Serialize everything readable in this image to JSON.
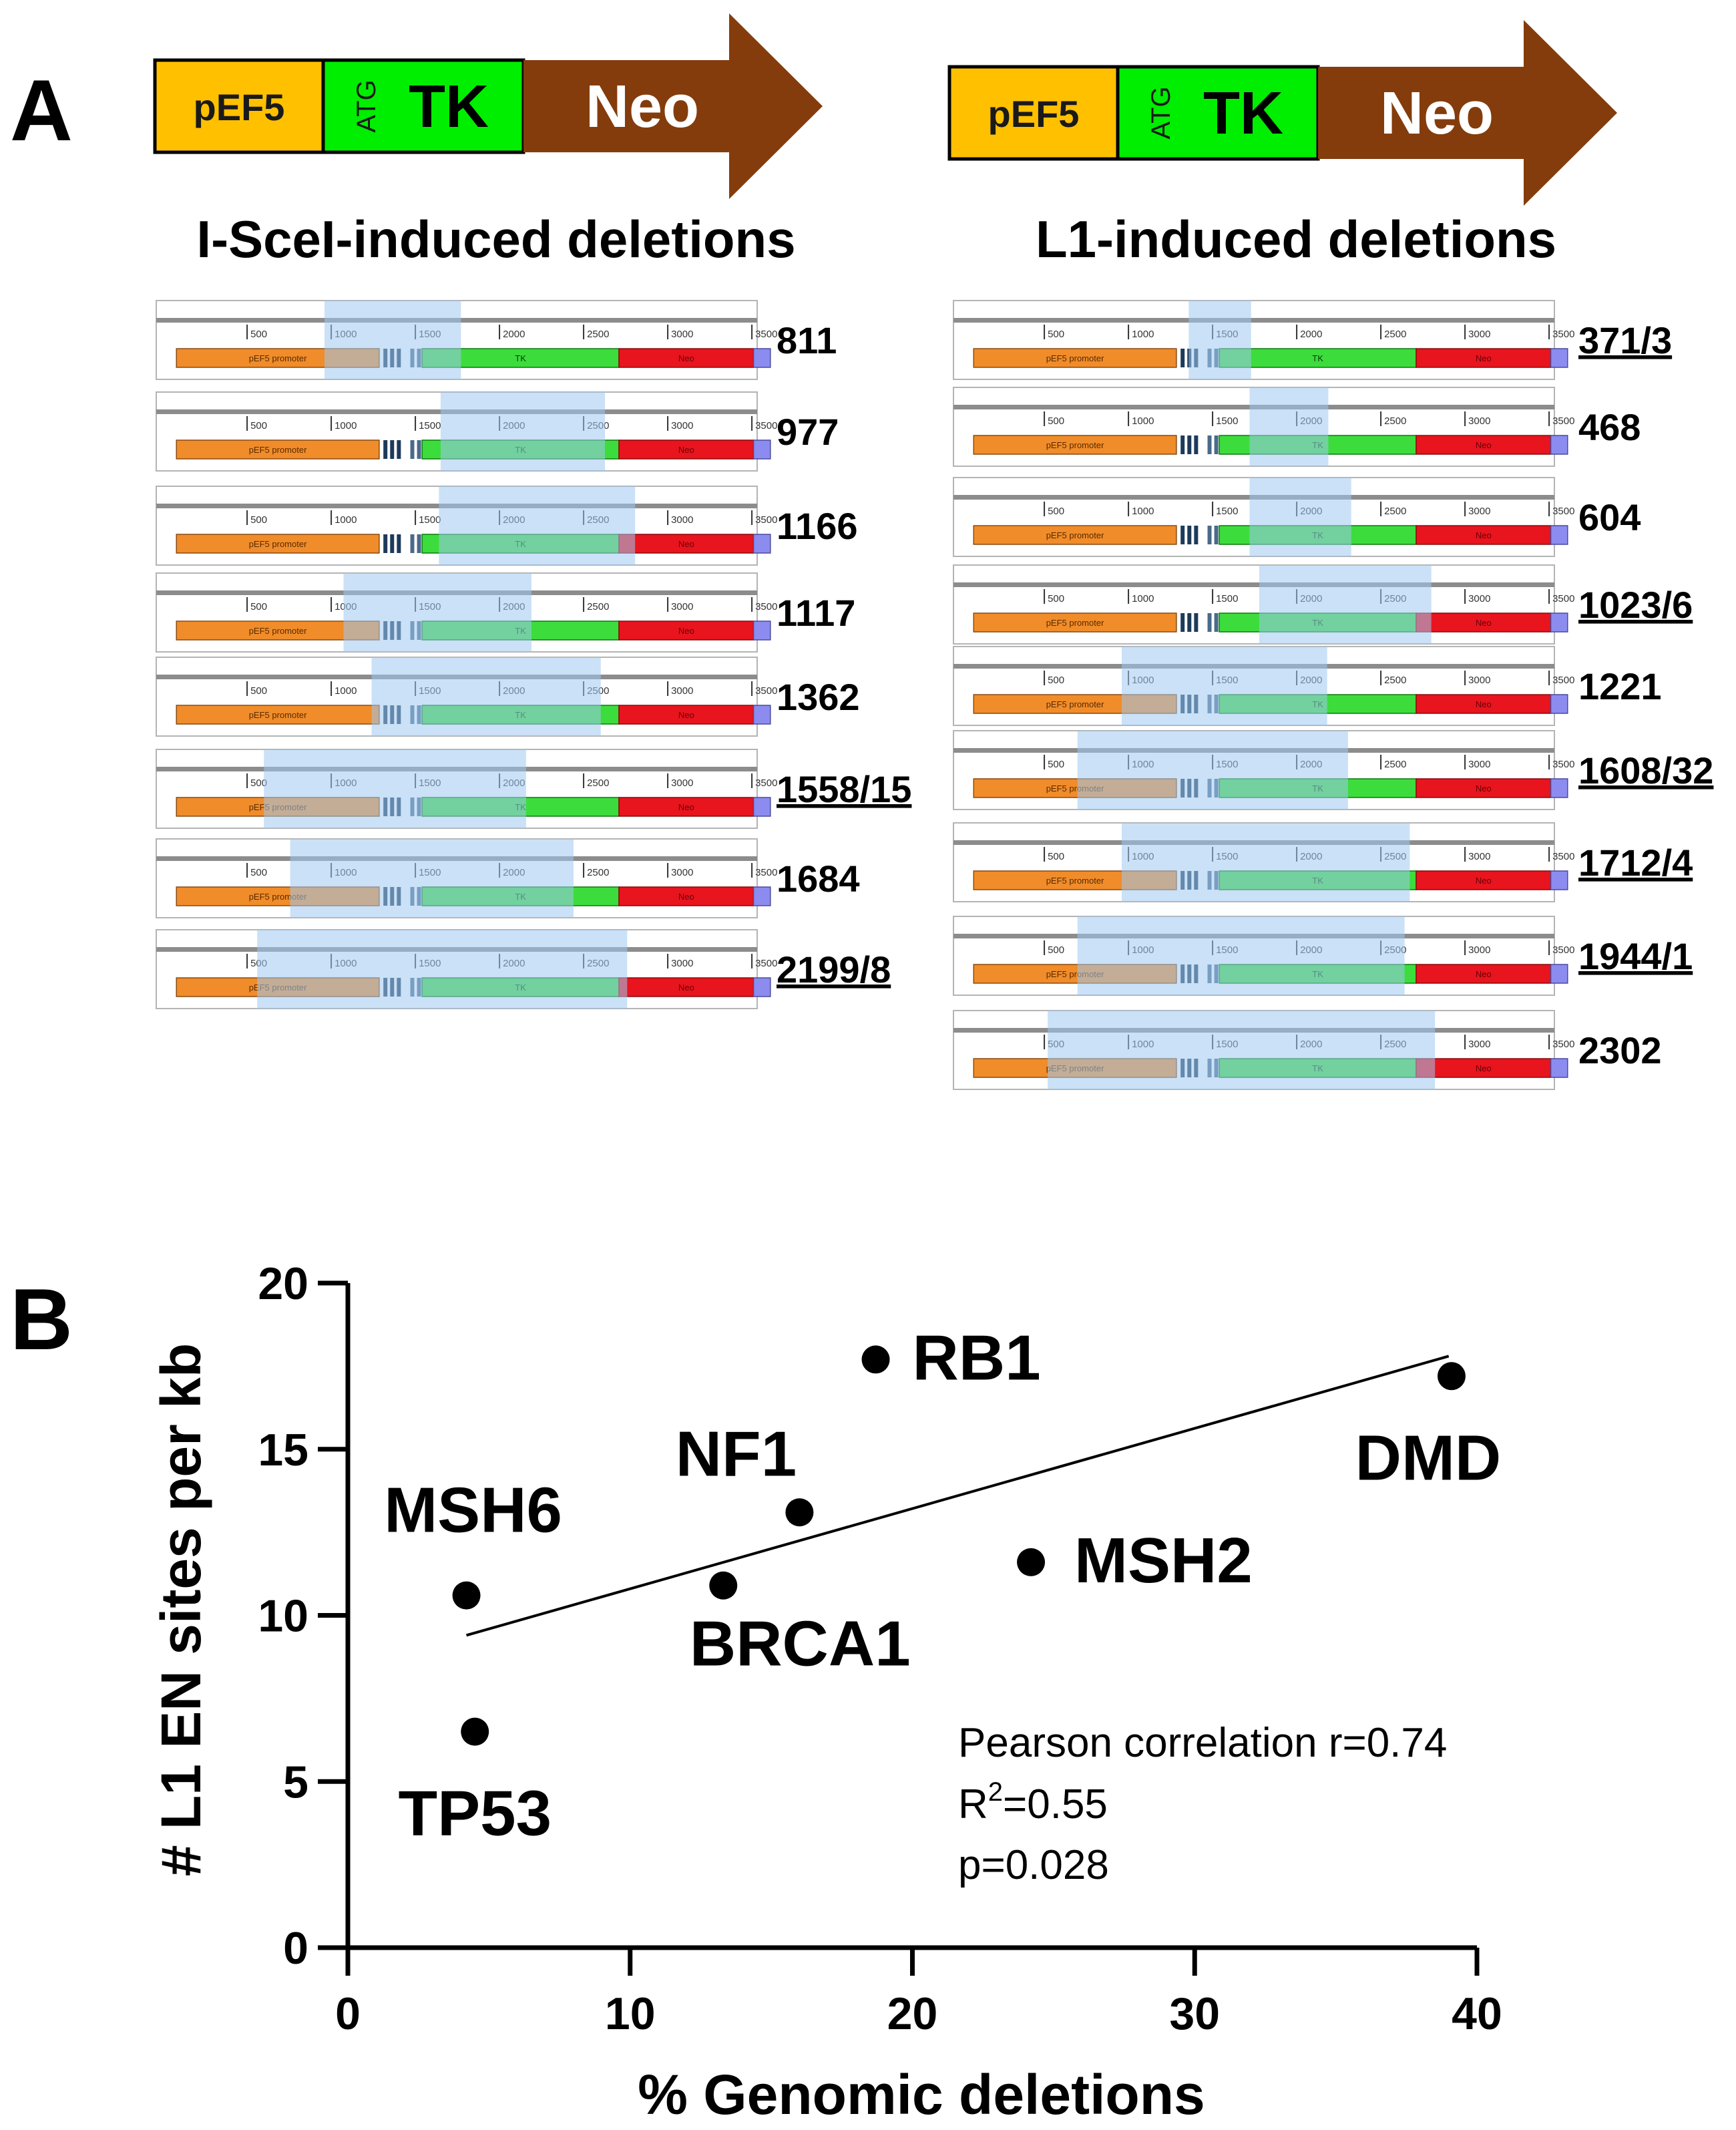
{
  "panel_a": {
    "label": "A",
    "construct_left": {
      "promoter": "pEF5",
      "atg": "ATG",
      "tk": "TK",
      "neo": "Neo"
    },
    "construct_right": {
      "promoter": "pEF5",
      "atg": "ATG",
      "tk": "TK",
      "neo": "Neo"
    },
    "left_title": "I-SceI-induced deletions",
    "right_title": "L1-induced deletions",
    "map_labels": {
      "promoter": "pEF5 promoter",
      "tk": "TK",
      "neo": "Neo"
    },
    "tick_labels": [
      "500",
      "1000",
      "1500",
      "2000",
      "2500",
      "3000",
      "3500"
    ],
    "colors": {
      "promoter": "#ffc000",
      "atg_tk": "#00ee00",
      "neo": "#843c0c",
      "map_promoter": "#f08c2a",
      "map_tk": "#3ddc3d",
      "map_neo": "#e8141e",
      "map_end": "#8c8cf0",
      "deletion": "#9ec8f0"
    },
    "iscei_deletions": [
      {
        "label": "811",
        "underlined": false,
        "del_start": 960,
        "del_end": 1771
      },
      {
        "label": "977",
        "underlined": false,
        "del_start": 1650,
        "del_end": 2627
      },
      {
        "label": "1166",
        "underlined": false,
        "del_start": 1640,
        "del_end": 2806
      },
      {
        "label": "1117",
        "underlined": false,
        "del_start": 1073,
        "del_end": 2190
      },
      {
        "label": "1362",
        "underlined": false,
        "del_start": 1240,
        "del_end": 2602
      },
      {
        "label": "1558/15",
        "underlined": true,
        "del_start": 600,
        "del_end": 2158
      },
      {
        "label": "1684",
        "underlined": false,
        "del_start": 756,
        "del_end": 2440
      },
      {
        "label": "2199/8",
        "underlined": true,
        "del_start": 560,
        "del_end": 2759
      }
    ],
    "l1_deletions": [
      {
        "label": "371/3",
        "underlined": true,
        "del_start": 1358,
        "del_end": 1729
      },
      {
        "label": "468",
        "underlined": false,
        "del_start": 1720,
        "del_end": 2188
      },
      {
        "label": "604",
        "underlined": false,
        "del_start": 1720,
        "del_end": 2324
      },
      {
        "label": "1023/6",
        "underlined": true,
        "del_start": 1777,
        "del_end": 2800
      },
      {
        "label": "1221",
        "underlined": false,
        "del_start": 960,
        "del_end": 2181
      },
      {
        "label": "1608/32",
        "underlined": true,
        "del_start": 697,
        "del_end": 2305
      },
      {
        "label": "1712/4",
        "underlined": true,
        "del_start": 960,
        "del_end": 2672
      },
      {
        "label": "1944/1",
        "underlined": true,
        "del_start": 697,
        "del_end": 2641
      },
      {
        "label": "2302",
        "underlined": false,
        "del_start": 520,
        "del_end": 2822
      }
    ]
  },
  "panel_b": {
    "label": "B"
  },
  "chart_data": {
    "type": "scatter",
    "xlabel": "% Genomic deletions",
    "ylabel": "# L1 EN sites per kb",
    "xlim": [
      0,
      40
    ],
    "ylim": [
      0,
      20
    ],
    "xticks": [
      "0",
      "10",
      "20",
      "30",
      "40"
    ],
    "yticks": [
      "0",
      "5",
      "10",
      "15",
      "20"
    ],
    "points": [
      {
        "name": "RB1",
        "x": 18.7,
        "y": 17.7
      },
      {
        "name": "DMD",
        "x": 39.1,
        "y": 17.2
      },
      {
        "name": "NF1",
        "x": 16.0,
        "y": 13.1
      },
      {
        "name": "MSH6",
        "x": 4.2,
        "y": 10.6
      },
      {
        "name": "BRCA1",
        "x": 13.3,
        "y": 10.9
      },
      {
        "name": "MSH2",
        "x": 24.2,
        "y": 11.6
      },
      {
        "name": "TP53",
        "x": 4.5,
        "y": 6.5
      }
    ],
    "fit_line": {
      "x": [
        4.2,
        39.0
      ],
      "y": [
        9.4,
        17.8
      ]
    },
    "stats": {
      "pearson": "Pearson correlation r=0.74",
      "r2_base": "R",
      "r2_sup": "2",
      "r2_value": "=0.55",
      "p": "p=0.028"
    }
  }
}
